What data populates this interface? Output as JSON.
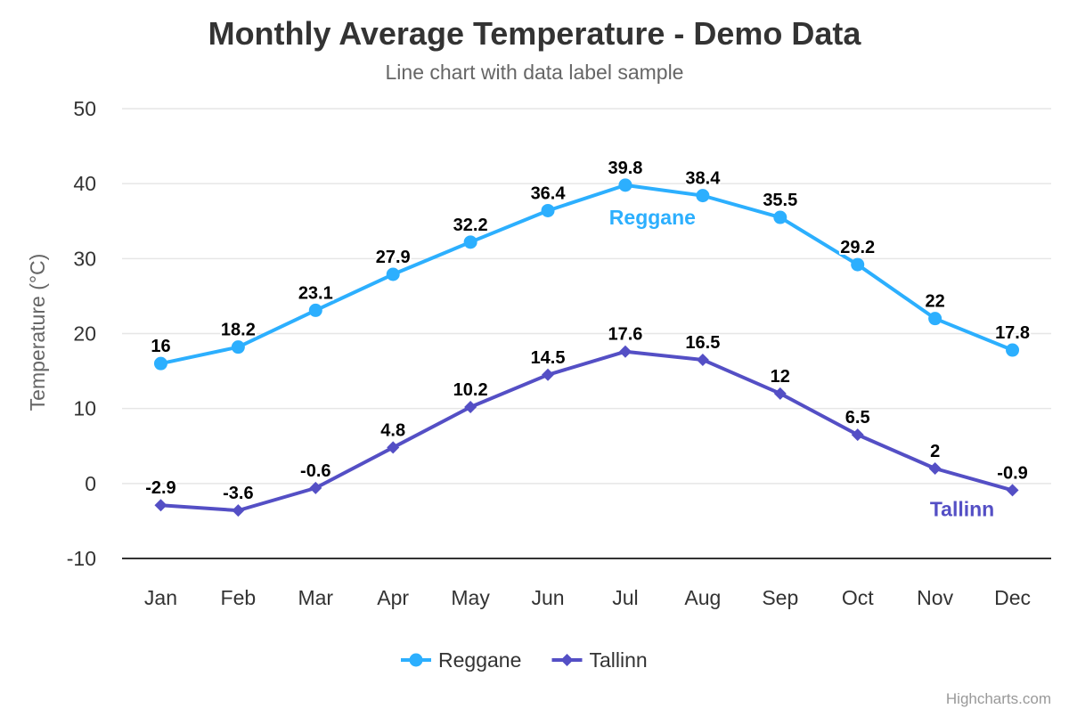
{
  "chart_data": {
    "type": "line",
    "title": "Monthly Average Temperature - Demo Data",
    "subtitle": "Line chart with data label sample",
    "xlabel": "",
    "ylabel": "Temperature (°C)",
    "categories": [
      "Jan",
      "Feb",
      "Mar",
      "Apr",
      "May",
      "Jun",
      "Jul",
      "Aug",
      "Sep",
      "Oct",
      "Nov",
      "Dec"
    ],
    "ylim": [
      -10,
      50
    ],
    "yticks": [
      -10,
      0,
      10,
      20,
      30,
      40,
      50
    ],
    "grid": true,
    "legend_position": "bottom-center",
    "series": [
      {
        "name": "Reggane",
        "color": "#2caffe",
        "marker": "circle",
        "values": [
          16,
          18.2,
          23.1,
          27.9,
          32.2,
          36.4,
          39.8,
          38.4,
          35.5,
          29.2,
          22,
          17.8
        ]
      },
      {
        "name": "Tallinn",
        "color": "#544fc5",
        "marker": "diamond",
        "values": [
          -2.9,
          -3.6,
          -0.6,
          4.8,
          10.2,
          14.5,
          17.6,
          16.5,
          12,
          6.5,
          2,
          -0.9
        ]
      }
    ],
    "credits": "Highcharts.com"
  }
}
